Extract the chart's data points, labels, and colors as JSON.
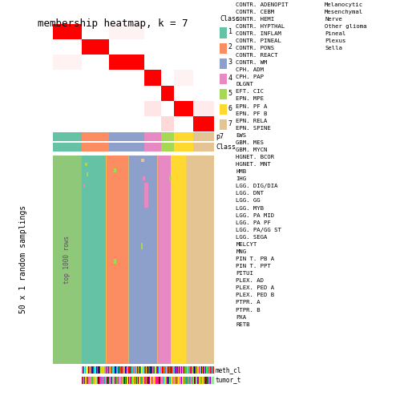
{
  "title": "membership heatmap, k = 7",
  "k": 7,
  "class_colors": {
    "1": "#66C2A5",
    "2": "#FC8D62",
    "3": "#8DA0CB",
    "4": "#E78AC3",
    "5": "#A6D854",
    "6": "#FFD92F",
    "7": "#E5C494"
  },
  "class_labels": [
    "1",
    "2",
    "3",
    "4",
    "5",
    "6",
    "7"
  ],
  "ylabel_main": "50 x 1 random samplings",
  "ylabel_sub": "top 1000 rows",
  "row_annot_label": "p7",
  "col_annot_label": "Class",
  "annot_bar_label_meth": "meth_cl",
  "annot_bar_label_tumor": "tumor_t",
  "legend_title": "Class",
  "legend_fontsize": 5.2,
  "legend_entries": [
    {
      "label": "CONTR. ADENOPIT",
      "color": "#FFD700"
    },
    {
      "label": "CONTR. CEBM",
      "color": "#FF69B4"
    },
    {
      "label": "CONTR. HEMI",
      "color": "#006400"
    },
    {
      "label": "CONTR. HYPTHAL",
      "color": "#9ACD32"
    },
    {
      "label": "CONTR. INFLAM",
      "color": "#8B0000"
    },
    {
      "label": "CONTR. PINEAL",
      "color": "#CD853F"
    },
    {
      "label": "CONTR. PONS",
      "color": "#228B22"
    },
    {
      "label": "CONTR. REACT",
      "color": "#32CD32"
    },
    {
      "label": "CONTR. WM",
      "color": "#BDB76B"
    },
    {
      "label": "CPH. ADM",
      "color": "#00CED1"
    },
    {
      "label": "CPH. PAP",
      "color": "#20B2AA"
    },
    {
      "label": "DLGNT",
      "color": "#8B4513"
    },
    {
      "label": "EFT. CIC",
      "color": "#DAA520"
    },
    {
      "label": "EPN. MPE",
      "color": "#006400"
    },
    {
      "label": "EPN. PF A",
      "color": "#FF1493"
    },
    {
      "label": "EPN. PF B",
      "color": "#9370DB"
    },
    {
      "label": "EPN. RELA",
      "color": "#90EE90"
    },
    {
      "label": "EPN. SPINE",
      "color": "#40E0D0"
    },
    {
      "label": "EWS",
      "color": "#7CFC00"
    },
    {
      "label": "GBM. MES",
      "color": "#2E8B57"
    },
    {
      "label": "GBM. MYCN",
      "color": "#00FA9A"
    },
    {
      "label": "HGNET. BCOR",
      "color": "#DA70D6"
    },
    {
      "label": "HGNET. MNT",
      "color": "#FF4500"
    },
    {
      "label": "HMB",
      "color": "#4B0082"
    },
    {
      "label": "IHG",
      "color": "#FF00FF"
    },
    {
      "label": "LGG. DIG/DIA",
      "color": "#00FF7F"
    },
    {
      "label": "LGG. DNT",
      "color": "#DC143C"
    },
    {
      "label": "LGG. GG",
      "color": "#9400D3"
    },
    {
      "label": "LGG. MYB",
      "color": "#7FFF00"
    },
    {
      "label": "LGG. PA MID",
      "color": "#00FFFF"
    },
    {
      "label": "LGG. PA PF",
      "color": "#4682B4"
    },
    {
      "label": "LGG. PA/GG ST",
      "color": "#FF6347"
    },
    {
      "label": "LGG. SEGA",
      "color": "#0000CD"
    },
    {
      "label": "MELCYT",
      "color": "#1E90FF"
    },
    {
      "label": "MNG",
      "color": "#ADFF2F"
    },
    {
      "label": "PIN T. PB A",
      "color": "#008080"
    },
    {
      "label": "PIN T. PPT",
      "color": "#FF8C00"
    },
    {
      "label": "PITUI",
      "color": "#FA8072"
    },
    {
      "label": "PLEX. AD",
      "color": "#191970"
    },
    {
      "label": "PLEX. PED A",
      "color": "#C71585"
    },
    {
      "label": "PLEX. PED B",
      "color": "#FFFF00"
    },
    {
      "label": "PTPR. A",
      "color": "#48D1CC"
    },
    {
      "label": "PTPR. B",
      "color": "#FF69B4"
    },
    {
      "label": "PXA",
      "color": "#FF4500"
    },
    {
      "label": "RETB",
      "color": "#FF0000"
    }
  ],
  "legend2_entries": [
    {
      "label": "Melanocytic",
      "color": "#9400D3"
    },
    {
      "label": "Mesenchymal",
      "color": "#20B2AA"
    },
    {
      "label": "Nerve",
      "color": "#FFD700"
    },
    {
      "label": "Other glioma",
      "color": "#90EE90"
    },
    {
      "label": "Pineal",
      "color": "#FF69B4"
    },
    {
      "label": "Plexus",
      "color": "#9370DB"
    },
    {
      "label": "Sella",
      "color": "#FF1493"
    }
  ],
  "bg_color": "#FFFFFF",
  "left_panel_color": "#90C879",
  "hm_high": "#FF0000",
  "hm_low": "#FFFFFF"
}
